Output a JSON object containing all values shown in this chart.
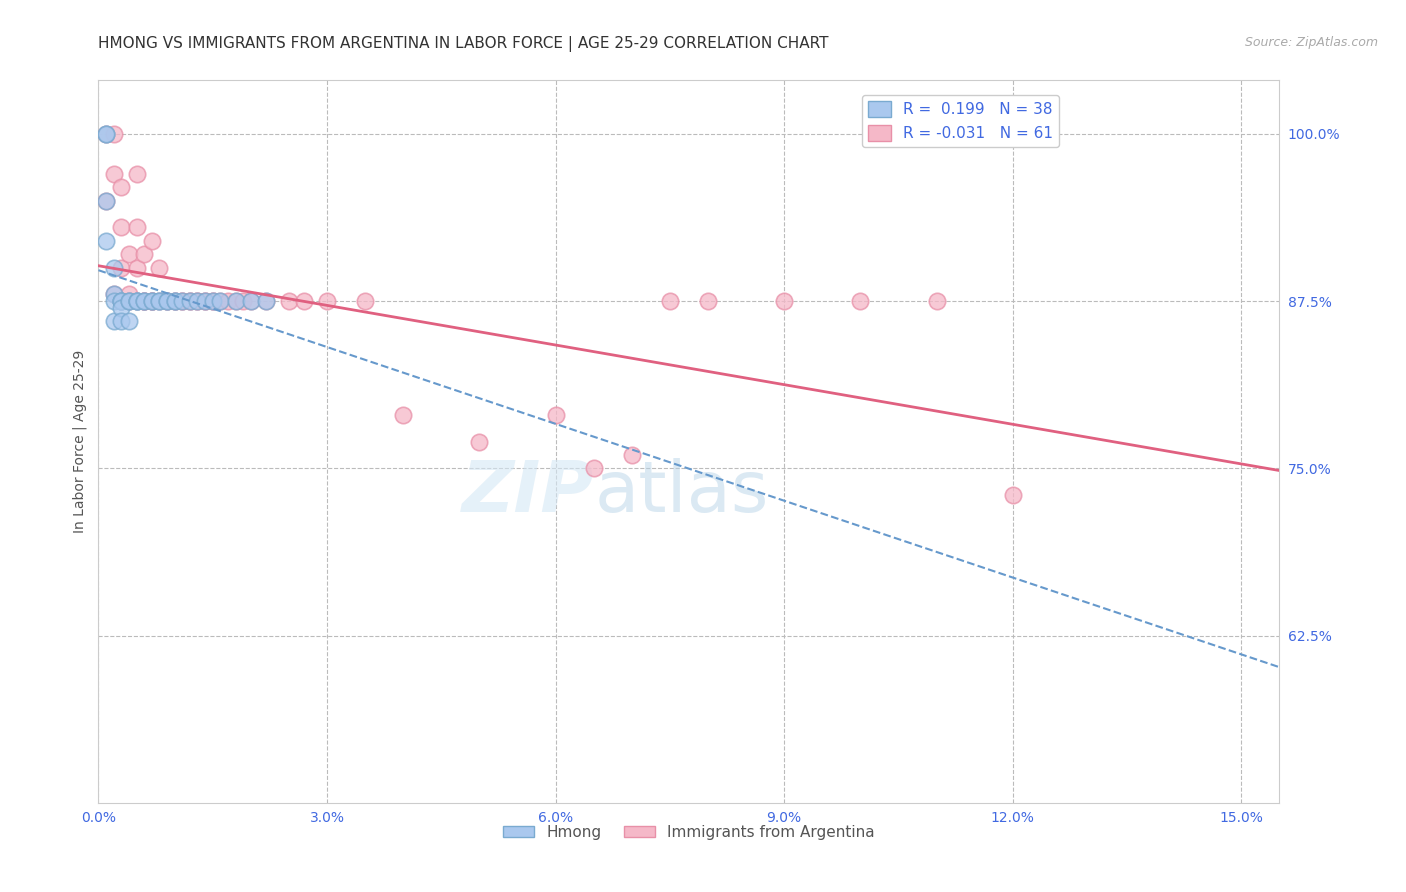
{
  "title": "HMONG VS IMMIGRANTS FROM ARGENTINA IN LABOR FORCE | AGE 25-29 CORRELATION CHART",
  "source_text": "Source: ZipAtlas.com",
  "ylabel": "In Labor Force | Age 25-29",
  "xlim": [
    0.0,
    0.155
  ],
  "ylim": [
    0.5,
    1.04
  ],
  "xticks": [
    0.0,
    0.03,
    0.06,
    0.09,
    0.12,
    0.15
  ],
  "xticklabels": [
    "0.0%",
    "3.0%",
    "6.0%",
    "9.0%",
    "12.0%",
    "15.0%"
  ],
  "yticks": [
    0.625,
    0.75,
    0.875,
    1.0
  ],
  "yticklabels": [
    "62.5%",
    "75.0%",
    "87.5%",
    "100.0%"
  ],
  "ytick_color": "#4169e1",
  "xtick_color": "#4169e1",
  "grid_color": "#bbbbbb",
  "background_color": "#ffffff",
  "title_color": "#333333",
  "title_fontsize": 11,
  "watermark_zip": "ZIP",
  "watermark_atlas": "atlas",
  "hmong_color": "#aac8ee",
  "hmong_edge_color": "#7aaad0",
  "argentina_color": "#f5b8c8",
  "argentina_edge_color": "#e890a8",
  "hmong_R": 0.199,
  "hmong_N": 38,
  "argentina_R": -0.031,
  "argentina_N": 61,
  "hmong_trend_color": "#6699cc",
  "argentina_trend_color": "#e06080",
  "hmong_x": [
    0.001,
    0.001,
    0.001,
    0.001,
    0.002,
    0.002,
    0.002,
    0.002,
    0.003,
    0.003,
    0.003,
    0.003,
    0.003,
    0.004,
    0.004,
    0.004,
    0.005,
    0.005,
    0.005,
    0.006,
    0.006,
    0.007,
    0.007,
    0.008,
    0.008,
    0.009,
    0.009,
    0.01,
    0.01,
    0.011,
    0.012,
    0.013,
    0.014,
    0.015,
    0.016,
    0.018,
    0.02,
    0.022
  ],
  "hmong_y": [
    1.0,
    1.0,
    0.95,
    0.92,
    0.9,
    0.88,
    0.875,
    0.86,
    0.875,
    0.875,
    0.875,
    0.87,
    0.86,
    0.875,
    0.875,
    0.86,
    0.875,
    0.875,
    0.875,
    0.875,
    0.875,
    0.875,
    0.875,
    0.875,
    0.875,
    0.875,
    0.875,
    0.875,
    0.875,
    0.875,
    0.875,
    0.875,
    0.875,
    0.875,
    0.875,
    0.875,
    0.875,
    0.875
  ],
  "argentina_x": [
    0.001,
    0.001,
    0.002,
    0.002,
    0.002,
    0.003,
    0.003,
    0.003,
    0.003,
    0.004,
    0.004,
    0.004,
    0.005,
    0.005,
    0.005,
    0.005,
    0.006,
    0.006,
    0.006,
    0.006,
    0.007,
    0.007,
    0.007,
    0.007,
    0.008,
    0.008,
    0.009,
    0.009,
    0.01,
    0.01,
    0.011,
    0.011,
    0.012,
    0.012,
    0.013,
    0.013,
    0.014,
    0.014,
    0.015,
    0.015,
    0.016,
    0.017,
    0.018,
    0.019,
    0.02,
    0.022,
    0.025,
    0.027,
    0.03,
    0.035,
    0.04,
    0.05,
    0.06,
    0.065,
    0.07,
    0.075,
    0.08,
    0.09,
    0.1,
    0.11,
    0.12
  ],
  "argentina_y": [
    1.0,
    0.95,
    1.0,
    0.97,
    0.88,
    0.96,
    0.93,
    0.9,
    0.875,
    0.91,
    0.88,
    0.875,
    0.97,
    0.93,
    0.9,
    0.875,
    0.91,
    0.875,
    0.875,
    0.875,
    0.92,
    0.875,
    0.875,
    0.875,
    0.9,
    0.875,
    0.875,
    0.875,
    0.875,
    0.875,
    0.875,
    0.875,
    0.875,
    0.875,
    0.875,
    0.875,
    0.875,
    0.875,
    0.875,
    0.875,
    0.875,
    0.875,
    0.875,
    0.875,
    0.875,
    0.875,
    0.875,
    0.875,
    0.875,
    0.875,
    0.79,
    0.77,
    0.79,
    0.75,
    0.76,
    0.875,
    0.875,
    0.875,
    0.875,
    0.875,
    0.73
  ]
}
